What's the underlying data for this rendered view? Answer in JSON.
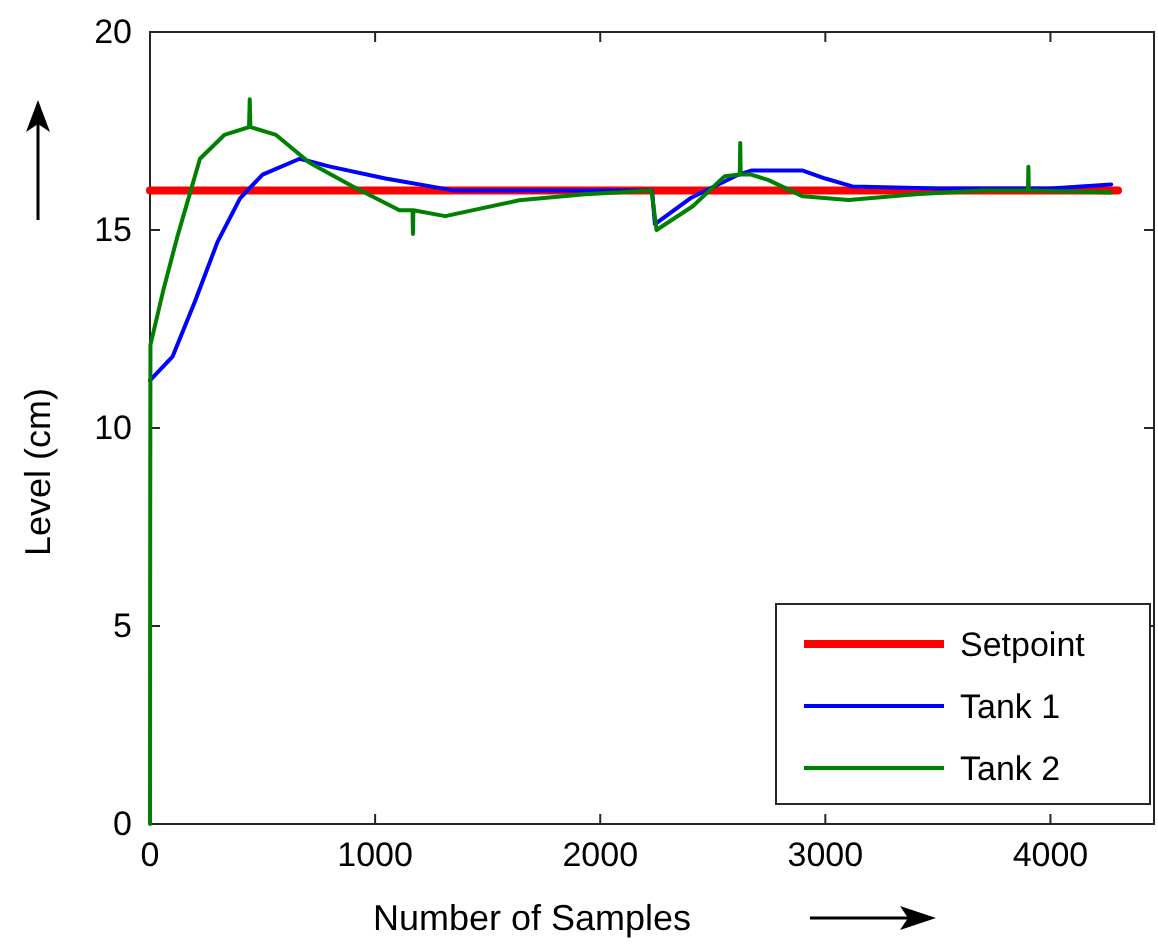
{
  "chart_data": {
    "type": "line",
    "xlabel": "Number of Samples",
    "ylabel": "Level (cm)",
    "xlim": [
      0,
      4460
    ],
    "ylim": [
      0,
      20
    ],
    "xticks": [
      0,
      1000,
      2000,
      3000,
      4000
    ],
    "yticks": [
      0,
      5,
      10,
      15,
      20
    ],
    "grid": false,
    "legend": "bottom right",
    "marker": "none",
    "line_style": "solid",
    "series": [
      {
        "name": "Setpoint",
        "color": "#ff0000",
        "x": [
          0,
          4300
        ],
        "values": [
          16,
          16
        ]
      },
      {
        "name": "Tank 1",
        "color": "#0000ff",
        "x": [
          0,
          100,
          200,
          300,
          400,
          500,
          665,
          800,
          1046,
          1347,
          1600,
          2000,
          2230,
          2243,
          2400,
          2615,
          2670,
          2900,
          3000,
          3120,
          3500,
          4000,
          4270
        ],
        "values": [
          11.2,
          11.8,
          13.2,
          14.7,
          15.8,
          16.4,
          16.8,
          16.6,
          16.3,
          16.0,
          16.0,
          16.0,
          16.0,
          15.15,
          15.8,
          16.4,
          16.5,
          16.5,
          16.3,
          16.1,
          16.05,
          16.05,
          16.15
        ]
      },
      {
        "name": "Tank 2",
        "color": "#008000",
        "x": [
          0,
          1,
          2,
          60,
          120,
          222,
          330,
          440,
          443,
          446,
          560,
          709,
          901,
          1108,
          1166,
          1168,
          1170,
          1312,
          1640,
          1933,
          2228,
          2250,
          2411,
          2553,
          2620,
          2622,
          2624,
          2670,
          2748,
          2900,
          3104,
          3400,
          3700,
          3900,
          3902,
          3904,
          4270
        ],
        "values": [
          0,
          8,
          12.1,
          13.5,
          14.8,
          16.8,
          17.4,
          17.6,
          18.3,
          17.6,
          17.4,
          16.7,
          16.1,
          15.5,
          15.5,
          14.9,
          15.5,
          15.35,
          15.75,
          15.9,
          16.0,
          15.0,
          15.6,
          16.36,
          16.4,
          17.2,
          16.4,
          16.4,
          16.26,
          15.85,
          15.76,
          15.9,
          16.0,
          16.0,
          16.6,
          16.0,
          15.95
        ]
      }
    ]
  }
}
